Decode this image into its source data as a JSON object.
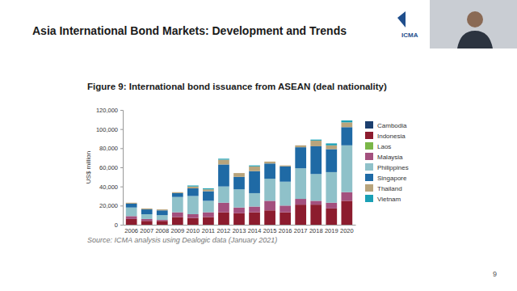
{
  "slide": {
    "title": "Asia International Bond Markets: Development and Trends",
    "logo": "ICMA",
    "page_number": 9
  },
  "chart_data": {
    "type": "bar",
    "stacked": true,
    "title": "Figure 9: International bond issuance from ASEAN (deal nationality)",
    "y_label": "US$ million",
    "source": "Source: ICMA analysis using Dealogic data (January 2021)",
    "categories": [
      "2006",
      "2007",
      "2008",
      "2009",
      "2010",
      "2011",
      "2012",
      "2013",
      "2014",
      "2015",
      "2016",
      "2017",
      "2018",
      "2019",
      "2020"
    ],
    "series": [
      {
        "name": "Cambodia",
        "color": "#1c3f6e",
        "values": [
          0,
          0,
          0,
          0,
          0,
          0,
          0,
          0,
          0,
          0,
          0,
          0,
          0,
          0,
          0
        ]
      },
      {
        "name": "Indonesia",
        "color": "#8c1c2e",
        "values": [
          6000,
          4000,
          4000,
          8000,
          7000,
          8000,
          13000,
          12000,
          13000,
          15000,
          13000,
          21000,
          21000,
          17000,
          25000
        ]
      },
      {
        "name": "Laos",
        "color": "#7ab648",
        "values": [
          0,
          0,
          0,
          0,
          0,
          0,
          0,
          0,
          0,
          0,
          0,
          0,
          0,
          0,
          0
        ]
      },
      {
        "name": "Malaysia",
        "color": "#a3507e",
        "values": [
          3000,
          2000,
          1000,
          5000,
          4000,
          5000,
          10000,
          6000,
          6000,
          10000,
          7000,
          6000,
          4000,
          6000,
          9000
        ]
      },
      {
        "name": "Philippines",
        "color": "#8fc1c9",
        "values": [
          9000,
          5000,
          5000,
          16000,
          19000,
          12000,
          17000,
          19000,
          14000,
          23000,
          25000,
          32000,
          28000,
          32000,
          49000
        ]
      },
      {
        "name": "Singapore",
        "color": "#1f6aa5",
        "values": [
          4000,
          5000,
          5000,
          4000,
          8000,
          10000,
          23000,
          13000,
          23000,
          16000,
          16000,
          22000,
          29000,
          24000,
          19000
        ]
      },
      {
        "name": "Thailand",
        "color": "#b8a47c",
        "values": [
          1000,
          1000,
          1000,
          1000,
          2000,
          2000,
          5000,
          4000,
          5000,
          2000,
          1000,
          2000,
          6000,
          4000,
          5000
        ]
      },
      {
        "name": "Vietnam",
        "color": "#1aa0b5",
        "values": [
          0,
          0,
          0,
          0,
          1000,
          1000,
          1000,
          0,
          1000,
          0,
          0,
          0,
          1000,
          2000,
          2000
        ]
      }
    ],
    "ylim": [
      0,
      120000
    ],
    "yticks": [
      0,
      {
        "value": 20000,
        "label": "20,000"
      },
      {
        "value": 40000,
        "label": "40,000"
      },
      {
        "value": 60000,
        "label": "60,000"
      },
      {
        "value": 80000,
        "label": "80,000"
      },
      {
        "value": 100000,
        "label": "100,000"
      },
      {
        "value": 120000,
        "label": "120,000"
      }
    ],
    "legend": "right",
    "grid": false
  }
}
